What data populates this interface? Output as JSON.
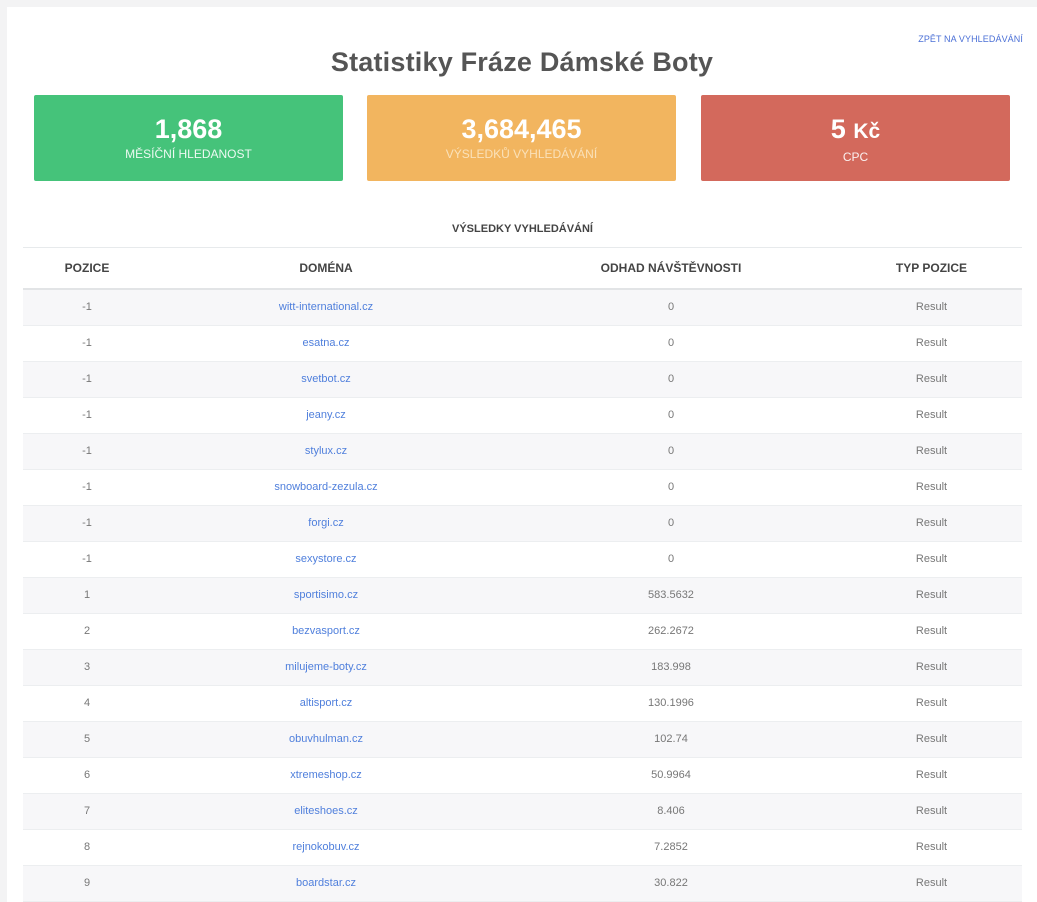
{
  "header": {
    "back_link": "ZPĚT NA VYHLEDÁVÁNÍ",
    "title": "Statistiky Fráze Dámské Boty"
  },
  "stats": {
    "monthly_search": {
      "value": "1,868",
      "label": "MĚSÍČNÍ HLEDANOST",
      "color": "#45c37a"
    },
    "search_results": {
      "value": "3,684,465",
      "label": "VÝSLEDKŮ VYHLEDÁVÁNÍ",
      "color": "#f2b55f"
    },
    "cpc": {
      "value": "5",
      "unit": "Kč",
      "label": "CPC",
      "color": "#d3695c"
    }
  },
  "results_table": {
    "caption": "VÝSLEDKY VYHLEDÁVÁNÍ",
    "columns": [
      "POZICE",
      "DOMÉNA",
      "ODHAD NÁVŠTĚVNOSTI",
      "TYP POZICE"
    ],
    "rows": [
      {
        "position": "-1",
        "domain": "witt-international.cz",
        "estimate": "0",
        "type": "Result"
      },
      {
        "position": "-1",
        "domain": "esatna.cz",
        "estimate": "0",
        "type": "Result"
      },
      {
        "position": "-1",
        "domain": "svetbot.cz",
        "estimate": "0",
        "type": "Result"
      },
      {
        "position": "-1",
        "domain": "jeany.cz",
        "estimate": "0",
        "type": "Result"
      },
      {
        "position": "-1",
        "domain": "stylux.cz",
        "estimate": "0",
        "type": "Result"
      },
      {
        "position": "-1",
        "domain": "snowboard-zezula.cz",
        "estimate": "0",
        "type": "Result"
      },
      {
        "position": "-1",
        "domain": "forgi.cz",
        "estimate": "0",
        "type": "Result"
      },
      {
        "position": "-1",
        "domain": "sexystore.cz",
        "estimate": "0",
        "type": "Result"
      },
      {
        "position": "1",
        "domain": "sportisimo.cz",
        "estimate": "583.5632",
        "type": "Result"
      },
      {
        "position": "2",
        "domain": "bezvasport.cz",
        "estimate": "262.2672",
        "type": "Result"
      },
      {
        "position": "3",
        "domain": "milujeme-boty.cz",
        "estimate": "183.998",
        "type": "Result"
      },
      {
        "position": "4",
        "domain": "altisport.cz",
        "estimate": "130.1996",
        "type": "Result"
      },
      {
        "position": "5",
        "domain": "obuvhulman.cz",
        "estimate": "102.74",
        "type": "Result"
      },
      {
        "position": "6",
        "domain": "xtremeshop.cz",
        "estimate": "50.9964",
        "type": "Result"
      },
      {
        "position": "7",
        "domain": "eliteshoes.cz",
        "estimate": "8.406",
        "type": "Result"
      },
      {
        "position": "8",
        "domain": "rejnokobuv.cz",
        "estimate": "7.2852",
        "type": "Result"
      },
      {
        "position": "9",
        "domain": "boardstar.cz",
        "estimate": "30.822",
        "type": "Result"
      }
    ]
  }
}
